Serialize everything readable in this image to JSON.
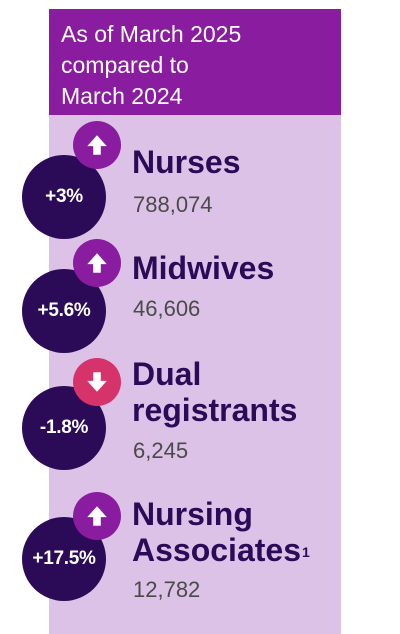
{
  "header": {
    "lines": [
      "As of March 2025",
      "compared to",
      "March 2024"
    ]
  },
  "colors": {
    "header_bg": "#8a1c9f",
    "panel_bg": "#dcc2e6",
    "circle_bg": "#2b0a57",
    "up_arrow_bg": "#8a1c9f",
    "down_arrow_bg": "#d7336b",
    "title_text": "#2b0a57",
    "value_text": "#4a4a4a"
  },
  "items": [
    {
      "change": "+3%",
      "direction": "up",
      "arrow_icon": "arrow-up-icon",
      "title_lines": [
        "Nurses"
      ],
      "value": "788,074"
    },
    {
      "change": "+5.6%",
      "direction": "up",
      "arrow_icon": "arrow-up-icon",
      "title_lines": [
        "Midwives"
      ],
      "value": "46,606"
    },
    {
      "change": "-1.8%",
      "direction": "down",
      "arrow_icon": "arrow-down-icon",
      "title_lines": [
        "Dual",
        "registrants"
      ],
      "value": "6,245"
    },
    {
      "change": "+17.5%",
      "direction": "up",
      "arrow_icon": "arrow-up-icon",
      "title_lines": [
        "Nursing",
        "Associates"
      ],
      "title_footnote": "1",
      "value": "12,782"
    }
  ]
}
